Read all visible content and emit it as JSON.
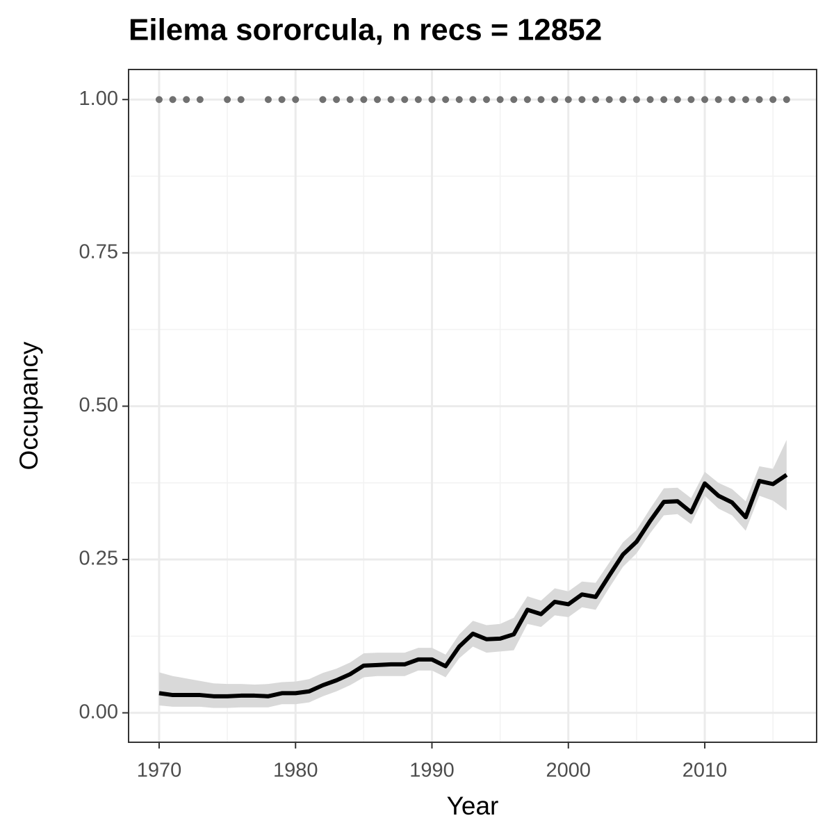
{
  "chart_data": {
    "type": "line",
    "title": "Eilema sororcula, n recs = 12852",
    "x_label": "Year",
    "y_label": "Occupancy",
    "xlim": [
      1967.76,
      2018.2
    ],
    "ylim": [
      -0.048,
      1.049
    ],
    "xticks": [
      1970,
      1980,
      1990,
      2000,
      2010
    ],
    "yticks": [
      {
        "value": 0,
        "label": "0.00"
      },
      {
        "value": 0.25,
        "label": "0.25"
      },
      {
        "value": 0.5,
        "label": "0.50"
      },
      {
        "value": 0.75,
        "label": "0.75"
      },
      {
        "value": 1,
        "label": "1.00"
      }
    ],
    "grid": true,
    "x": [
      1970,
      1971,
      1972,
      1973,
      1974,
      1975,
      1976,
      1977,
      1978,
      1979,
      1980,
      1981,
      1982,
      1983,
      1984,
      1985,
      1986,
      1987,
      1988,
      1989,
      1990,
      1991,
      1992,
      1993,
      1994,
      1995,
      1996,
      1997,
      1998,
      1999,
      2000,
      2001,
      2002,
      2003,
      2004,
      2005,
      2006,
      2007,
      2008,
      2009,
      2010,
      2011,
      2012,
      2013,
      2014,
      2015,
      2016
    ],
    "series": [
      {
        "name": "Occupancy",
        "color": "#000000",
        "values": [
          0.032,
          0.029,
          0.029,
          0.029,
          0.027,
          0.027,
          0.028,
          0.028,
          0.027,
          0.032,
          0.032,
          0.035,
          0.045,
          0.053,
          0.063,
          0.077,
          0.078,
          0.079,
          0.079,
          0.087,
          0.087,
          0.076,
          0.108,
          0.129,
          0.12,
          0.121,
          0.128,
          0.168,
          0.161,
          0.181,
          0.177,
          0.193,
          0.189,
          0.224,
          0.258,
          0.279,
          0.313,
          0.344,
          0.345,
          0.327,
          0.374,
          0.354,
          0.343,
          0.319,
          0.378,
          0.373,
          0.388
        ],
        "lower": [
          0.012,
          0.01,
          0.01,
          0.01,
          0.008,
          0.008,
          0.009,
          0.009,
          0.009,
          0.014,
          0.014,
          0.017,
          0.027,
          0.035,
          0.045,
          0.058,
          0.06,
          0.06,
          0.06,
          0.069,
          0.069,
          0.058,
          0.089,
          0.108,
          0.098,
          0.1,
          0.102,
          0.145,
          0.14,
          0.159,
          0.156,
          0.172,
          0.168,
          0.204,
          0.238,
          0.26,
          0.293,
          0.322,
          0.324,
          0.308,
          0.354,
          0.333,
          0.322,
          0.297,
          0.354,
          0.346,
          0.33
        ],
        "upper": [
          0.066,
          0.06,
          0.056,
          0.052,
          0.048,
          0.047,
          0.047,
          0.046,
          0.047,
          0.05,
          0.051,
          0.055,
          0.065,
          0.072,
          0.082,
          0.097,
          0.098,
          0.098,
          0.098,
          0.106,
          0.106,
          0.095,
          0.128,
          0.15,
          0.143,
          0.145,
          0.155,
          0.19,
          0.183,
          0.203,
          0.198,
          0.214,
          0.212,
          0.245,
          0.278,
          0.298,
          0.333,
          0.366,
          0.367,
          0.35,
          0.393,
          0.375,
          0.365,
          0.345,
          0.402,
          0.398,
          0.445
        ],
        "band_color": "#d9d9d9"
      }
    ],
    "points": {
      "color": "#707070",
      "x": [
        1970,
        1971,
        1972,
        1973,
        1975,
        1976,
        1978,
        1979,
        1980,
        1982,
        1983,
        1984,
        1985,
        1986,
        1987,
        1988,
        1989,
        1990,
        1991,
        1992,
        1993,
        1994,
        1995,
        1996,
        1997,
        1998,
        1999,
        2000,
        2001,
        2002,
        2003,
        2004,
        2005,
        2006,
        2007,
        2008,
        2009,
        2010,
        2011,
        2012,
        2013,
        2014,
        2015,
        2016
      ],
      "values": [
        1,
        1,
        1,
        1,
        1,
        1,
        1,
        1,
        1,
        1,
        1,
        1,
        1,
        1,
        1,
        1,
        1,
        1,
        1,
        1,
        1,
        1,
        1,
        1,
        1,
        1,
        1,
        1,
        1,
        1,
        1,
        1,
        1,
        1,
        1,
        1,
        1,
        1,
        1,
        1,
        1,
        1,
        1,
        1
      ]
    }
  }
}
